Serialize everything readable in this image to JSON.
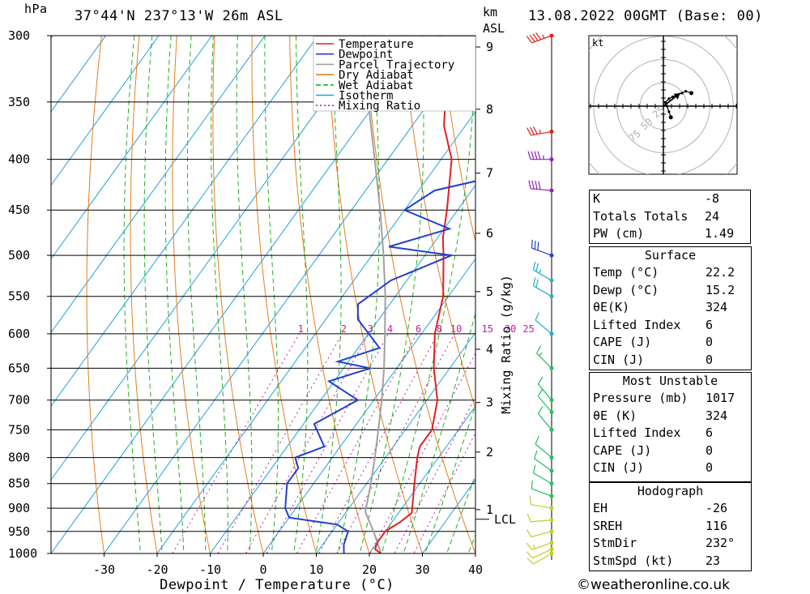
{
  "header": {
    "pressure_unit": "hPa",
    "location": "37°44'N  237°13'W  26m  ASL",
    "height_unit": "km",
    "height_unit2": "ASL",
    "datetime": "13.08.2022  00GMT  (Base: 00)"
  },
  "chart_data": {
    "type": "line",
    "xlabel": "Dewpoint / Temperature (°C)",
    "ylabel": "hPa",
    "right_label": "Mixing Ratio (g/kg)",
    "xlim": [
      -40,
      40
    ],
    "ylim": [
      1000,
      300
    ],
    "x_ticks": [
      -30,
      -20,
      -10,
      0,
      10,
      20,
      30,
      40
    ],
    "pressure_ticks": [
      300,
      350,
      400,
      450,
      500,
      550,
      600,
      650,
      700,
      750,
      800,
      850,
      900,
      950,
      1000
    ],
    "km_ticks": [
      {
        "label": "1",
        "p": 903
      },
      {
        "label": "2",
        "p": 790
      },
      {
        "label": "3",
        "p": 704
      },
      {
        "label": "4",
        "p": 622
      },
      {
        "label": "5",
        "p": 544
      },
      {
        "label": "6",
        "p": 475
      },
      {
        "label": "7",
        "p": 413
      },
      {
        "label": "8",
        "p": 356
      },
      {
        "label": "9",
        "p": 308
      }
    ],
    "lcl_label": "LCL",
    "lcl_p": 908,
    "mixing_ratio_labels": [
      "1",
      "2",
      "3",
      "4",
      "6",
      "8",
      "10",
      "15",
      "20",
      "25"
    ],
    "mixing_ratio_values": [
      1,
      2,
      3,
      4,
      6,
      8,
      10,
      15,
      20,
      25
    ],
    "legend": [
      "Temperature",
      "Dewpoint",
      "Parcel Trajectory",
      "Dry Adiabat",
      "Wet Adiabat",
      "Isotherm",
      "Mixing Ratio"
    ],
    "colors": {
      "temperature": "#e02020",
      "dewpoint": "#2040d0",
      "parcel": "#a0a0a0",
      "dry_adiabat": "#e08020",
      "wet_adiabat": "#20b020",
      "isotherm": "#20a0e0",
      "mixing_ratio": "#c020a0"
    },
    "temperature": [
      {
        "p": 1000,
        "t": 22.2
      },
      {
        "p": 990,
        "t": 20.5
      },
      {
        "p": 975,
        "t": 20.0
      },
      {
        "p": 950,
        "t": 20.0
      },
      {
        "p": 930,
        "t": 21.5
      },
      {
        "p": 910,
        "t": 22.5
      },
      {
        "p": 850,
        "t": 19.0
      },
      {
        "p": 800,
        "t": 16.0
      },
      {
        "p": 780,
        "t": 15.0
      },
      {
        "p": 750,
        "t": 15.0
      },
      {
        "p": 700,
        "t": 12.0
      },
      {
        "p": 650,
        "t": 7.0
      },
      {
        "p": 600,
        "t": 2.5
      },
      {
        "p": 550,
        "t": -1.0
      },
      {
        "p": 500,
        "t": -6.5
      },
      {
        "p": 480,
        "t": -9.0
      },
      {
        "p": 450,
        "t": -12.0
      },
      {
        "p": 400,
        "t": -18.0
      },
      {
        "p": 370,
        "t": -24.0
      },
      {
        "p": 350,
        "t": -27.0
      },
      {
        "p": 330,
        "t": -31.0
      },
      {
        "p": 300,
        "t": -37.0
      }
    ],
    "dewpoint": [
      {
        "p": 1000,
        "t": 15.2
      },
      {
        "p": 980,
        "t": 14.0
      },
      {
        "p": 950,
        "t": 13.0
      },
      {
        "p": 935,
        "t": 10.0
      },
      {
        "p": 920,
        "t": 0.0
      },
      {
        "p": 900,
        "t": -2.0
      },
      {
        "p": 850,
        "t": -5.0
      },
      {
        "p": 820,
        "t": -5.0
      },
      {
        "p": 800,
        "t": -7.0
      },
      {
        "p": 780,
        "t": -3.0
      },
      {
        "p": 740,
        "t": -8.0
      },
      {
        "p": 700,
        "t": -3.0
      },
      {
        "p": 670,
        "t": -11.0
      },
      {
        "p": 650,
        "t": -5.0
      },
      {
        "p": 640,
        "t": -12.0
      },
      {
        "p": 620,
        "t": -6.0
      },
      {
        "p": 580,
        "t": -14.0
      },
      {
        "p": 560,
        "t": -16.0
      },
      {
        "p": 530,
        "t": -13.0
      },
      {
        "p": 500,
        "t": -5.0
      },
      {
        "p": 490,
        "t": -18.0
      },
      {
        "p": 470,
        "t": -9.0
      },
      {
        "p": 450,
        "t": -20.0
      },
      {
        "p": 430,
        "t": -17.0
      },
      {
        "p": 420,
        "t": -10.0
      },
      {
        "p": 400,
        "t": -10.0
      },
      {
        "p": 375,
        "t": -6.0
      },
      {
        "p": 360,
        "t": -14.0
      },
      {
        "p": 340,
        "t": -18.0
      },
      {
        "p": 320,
        "t": -17.0
      },
      {
        "p": 310,
        "t": -20.0
      },
      {
        "p": 300,
        "t": -24.0
      }
    ],
    "parcel": [
      {
        "p": 1000,
        "t": 22.2
      },
      {
        "p": 950,
        "t": 17.8
      },
      {
        "p": 908,
        "t": 13.6
      },
      {
        "p": 850,
        "t": 10.8
      },
      {
        "p": 800,
        "t": 8.0
      },
      {
        "p": 750,
        "t": 4.9
      },
      {
        "p": 700,
        "t": 1.5
      },
      {
        "p": 650,
        "t": -2.4
      },
      {
        "p": 600,
        "t": -6.9
      },
      {
        "p": 550,
        "t": -11.9
      },
      {
        "p": 500,
        "t": -17.8
      },
      {
        "p": 450,
        "t": -24.6
      },
      {
        "p": 400,
        "t": -32.5
      },
      {
        "p": 350,
        "t": -41.5
      },
      {
        "p": 300,
        "t": -51.5
      }
    ],
    "wind_barbs": [
      {
        "p": 1000,
        "dir": 240,
        "spd": 12
      },
      {
        "p": 990,
        "dir": 245,
        "spd": 14
      },
      {
        "p": 975,
        "dir": 250,
        "spd": 15
      },
      {
        "p": 950,
        "dir": 255,
        "spd": 14
      },
      {
        "p": 925,
        "dir": 265,
        "spd": 13
      },
      {
        "p": 900,
        "dir": 280,
        "spd": 12
      },
      {
        "p": 875,
        "dir": 290,
        "spd": 10
      },
      {
        "p": 850,
        "dir": 300,
        "spd": 10
      },
      {
        "p": 825,
        "dir": 305,
        "spd": 10
      },
      {
        "p": 800,
        "dir": 310,
        "spd": 10
      },
      {
        "p": 750,
        "dir": 320,
        "spd": 12
      },
      {
        "p": 720,
        "dir": 320,
        "spd": 14
      },
      {
        "p": 700,
        "dir": 320,
        "spd": 14
      },
      {
        "p": 650,
        "dir": 315,
        "spd": 15
      },
      {
        "p": 600,
        "dir": 310,
        "spd": 14
      },
      {
        "p": 550,
        "dir": 300,
        "spd": 20
      },
      {
        "p": 530,
        "dir": 300,
        "spd": 25
      },
      {
        "p": 500,
        "dir": 290,
        "spd": 30
      },
      {
        "p": 430,
        "dir": 275,
        "spd": 40
      },
      {
        "p": 400,
        "dir": 270,
        "spd": 45
      },
      {
        "p": 375,
        "dir": 260,
        "spd": 35
      },
      {
        "p": 300,
        "dir": 250,
        "spd": 45
      }
    ],
    "hodograph": {
      "unit": "kt",
      "ring_labels": [
        "25",
        "50",
        "75"
      ],
      "points": [
        {
          "u": 8,
          "v": -12
        },
        {
          "u": 6,
          "v": -6
        },
        {
          "u": 4,
          "v": 0
        },
        {
          "u": 2,
          "v": 4
        },
        {
          "u": 6,
          "v": 8
        },
        {
          "u": 10,
          "v": 10
        },
        {
          "u": 14,
          "v": 12
        },
        {
          "u": 20,
          "v": 14
        },
        {
          "u": 24,
          "v": 16
        },
        {
          "u": 30,
          "v": 14
        }
      ],
      "storm_motion": {
        "u": 18,
        "v": 14
      }
    }
  },
  "indices": [
    {
      "label": "K",
      "value": "-8"
    },
    {
      "label": "Totals Totals",
      "value": "24"
    },
    {
      "label": "PW (cm)",
      "value": "1.49"
    }
  ],
  "surface": {
    "title": "Surface",
    "rows": [
      {
        "label": "Temp (°C)",
        "value": "22.2"
      },
      {
        "label": "Dewp (°C)",
        "value": "15.2"
      },
      {
        "label": "θE(K)",
        "value": "324"
      },
      {
        "label": "Lifted Index",
        "value": "6"
      },
      {
        "label": "CAPE (J)",
        "value": "0"
      },
      {
        "label": "CIN (J)",
        "value": "0"
      }
    ]
  },
  "most_unstable": {
    "title": "Most Unstable",
    "rows": [
      {
        "label": "Pressure (mb)",
        "value": "1017"
      },
      {
        "label": "θE (K)",
        "value": "324"
      },
      {
        "label": "Lifted Index",
        "value": "6"
      },
      {
        "label": "CAPE (J)",
        "value": "0"
      },
      {
        "label": "CIN (J)",
        "value": "0"
      }
    ]
  },
  "hodograph_table": {
    "title": "Hodograph",
    "rows": [
      {
        "label": "EH",
        "value": "-26"
      },
      {
        "label": "SREH",
        "value": "116"
      },
      {
        "label": "StmDir",
        "value": "232°"
      },
      {
        "label": "StmSpd (kt)",
        "value": "23"
      }
    ]
  },
  "copyright": "©weatheronline.co.uk"
}
